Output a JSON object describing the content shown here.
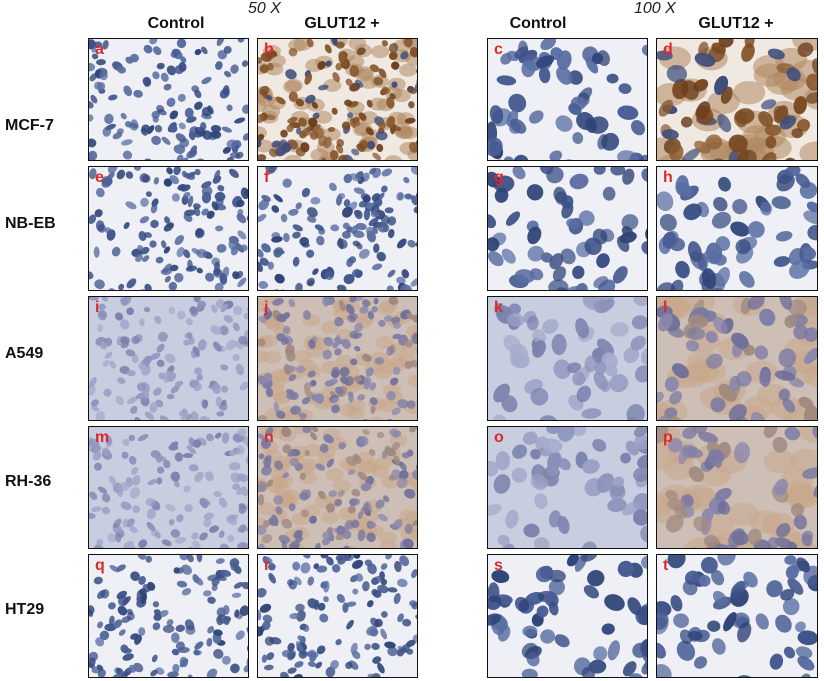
{
  "magnifications": [
    "50 X",
    "100 X"
  ],
  "column_headers": [
    "Control",
    "GLUT12 +",
    "Control",
    "GLUT12 +"
  ],
  "rows": [
    {
      "label": "MCF-7",
      "panels": [
        "a",
        "b",
        "c",
        "d"
      ],
      "stain": [
        "blue",
        "brown-strong",
        "blue",
        "brown-strong"
      ]
    },
    {
      "label": "NB-EB",
      "panels": [
        "e",
        "f",
        "g",
        "h"
      ],
      "stain": [
        "blue",
        "blue",
        "blue",
        "blue"
      ]
    },
    {
      "label": "A549",
      "panels": [
        "i",
        "j",
        "k",
        "l"
      ],
      "stain": [
        "pale",
        "brown-light",
        "pale",
        "brown-light"
      ]
    },
    {
      "label": "RH-36",
      "panels": [
        "m",
        "n",
        "o",
        "p"
      ],
      "stain": [
        "pale",
        "brown-light",
        "pale",
        "brown-light"
      ]
    },
    {
      "label": "HT29",
      "panels": [
        "q",
        "r",
        "s",
        "t"
      ],
      "stain": [
        "blue",
        "blue",
        "blue",
        "blue"
      ]
    }
  ],
  "colors": {
    "panel_label": "#e0282a",
    "nucleus": "#3a4f86",
    "brown": "#7a4a22"
  }
}
